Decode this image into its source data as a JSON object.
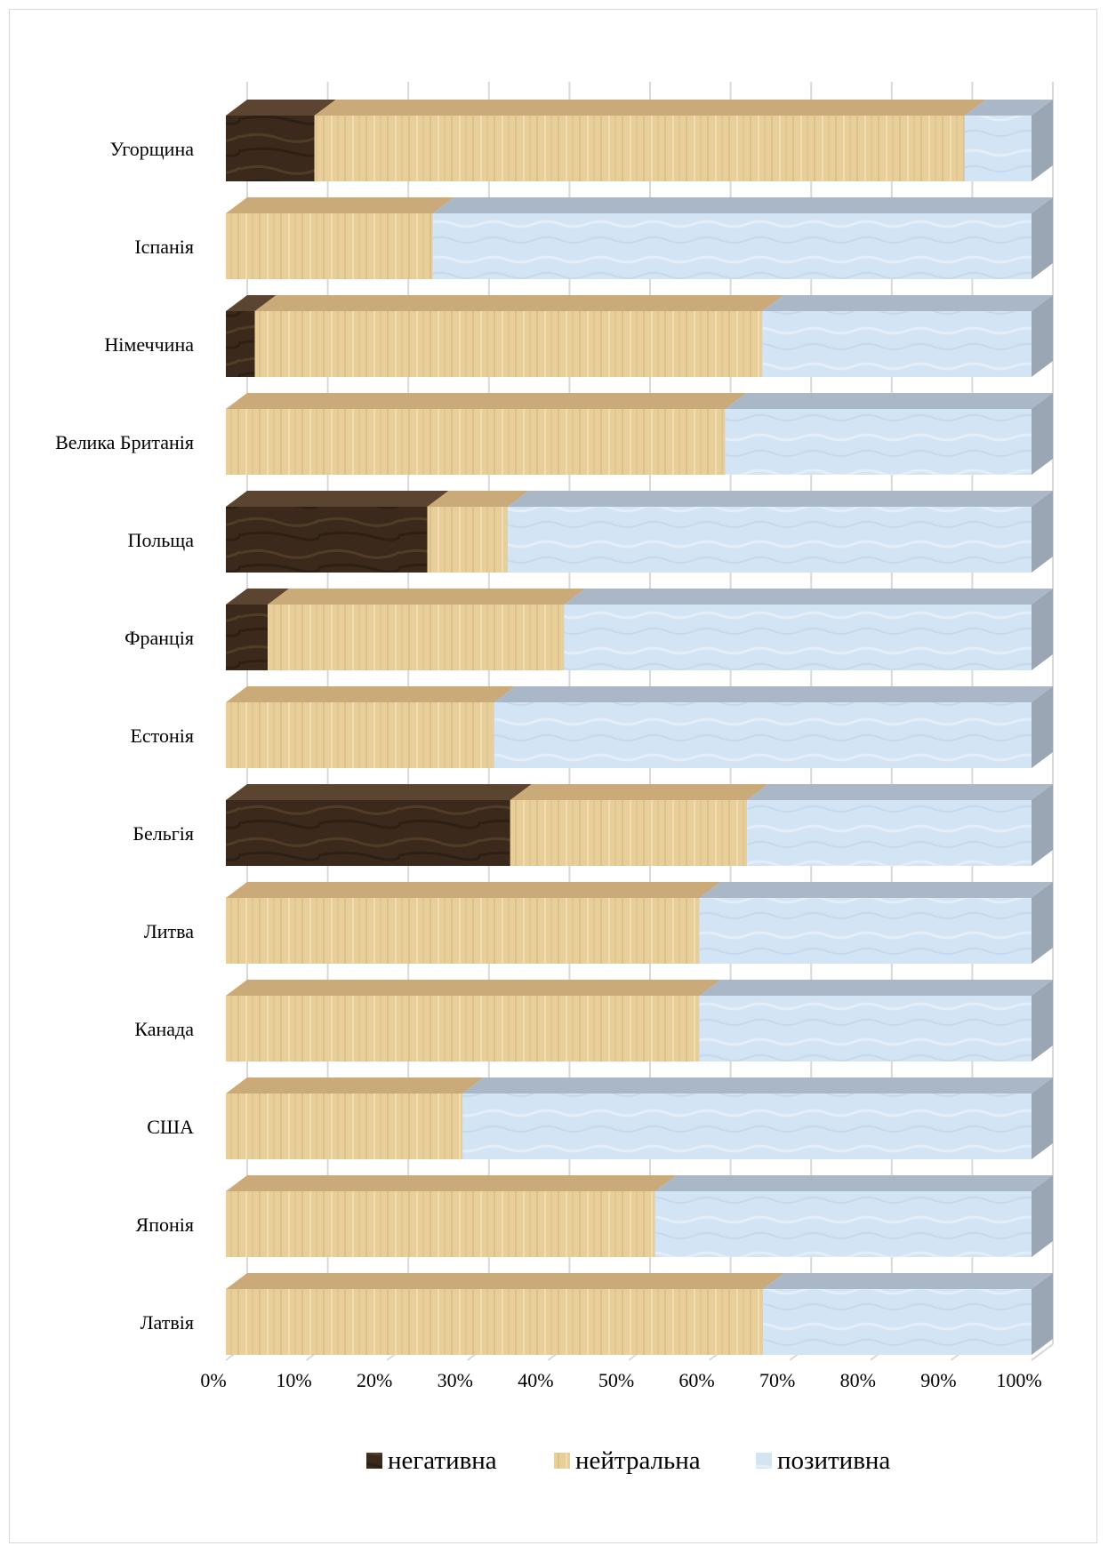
{
  "chart_data": {
    "type": "bar",
    "orientation": "horizontal",
    "stacked": "percent",
    "three_d": true,
    "categories": [
      "Угорщина",
      "Іспанія",
      "Німеччина",
      "Велика Британія",
      "Польща",
      "Франція",
      "Естонія",
      "Бельгія",
      "Литва",
      "Канада",
      "США",
      "Японія",
      "Латвія"
    ],
    "series": [
      {
        "name": "негативна",
        "color": "#3b2a1c",
        "values": [
          11,
          0,
          3.6,
          0,
          25,
          5.2,
          0,
          35.3,
          0,
          0,
          0,
          0,
          0
        ]
      },
      {
        "name": "нейтральна",
        "color": "#e8cf9a",
        "values": [
          80.7,
          25.7,
          63,
          62,
          10,
          36.8,
          33.3,
          29.4,
          58.8,
          58.8,
          29.4,
          53.3,
          66.7
        ]
      },
      {
        "name": "позитивна",
        "color": "#d3e4f4",
        "values": [
          8.3,
          74.3,
          33.4,
          38,
          65,
          58,
          66.7,
          35.3,
          41.2,
          41.2,
          70.6,
          46.7,
          33.3
        ]
      }
    ],
    "x_ticks": [
      "0%",
      "10%",
      "20%",
      "30%",
      "40%",
      "50%",
      "60%",
      "70%",
      "80%",
      "90%",
      "100%"
    ],
    "xlim": [
      0,
      100
    ],
    "grid": true,
    "legend_position": "bottom"
  }
}
